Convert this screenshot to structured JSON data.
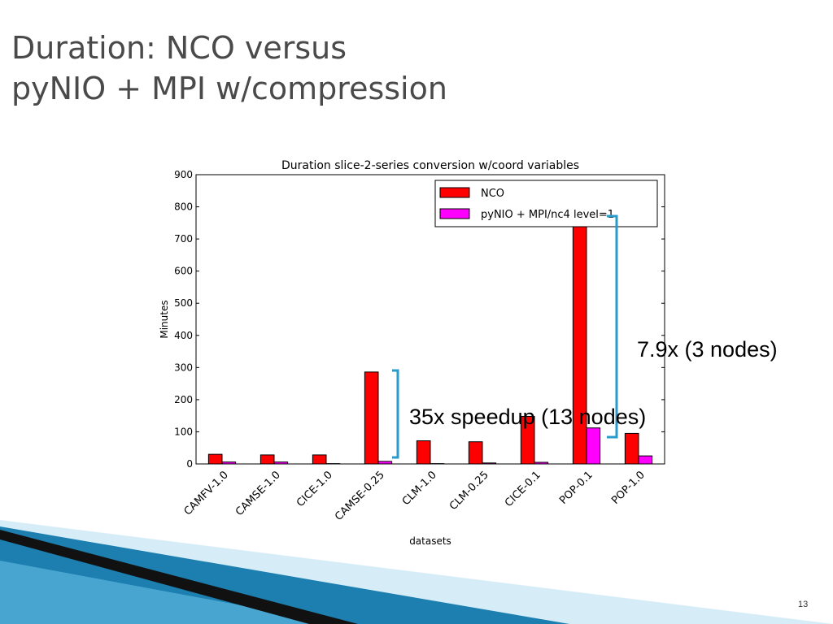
{
  "slide": {
    "title_line1": "Duration: NCO versus",
    "title_line2": "pyNIO + MPI w/compression",
    "callout_top": "7.9x (3 nodes)",
    "callout_bottom": "35x speedup (13 nodes)",
    "page_number": "13"
  },
  "colors": {
    "nco": "#ff0000",
    "pynio": "#ff00ff",
    "bracket": "#2a9bc9",
    "title": "#4a4a4a",
    "decor_dark": "#111111",
    "decor_blue": "#1c7fb0",
    "decor_light": "#bfe1f2"
  },
  "chart_data": {
    "type": "bar",
    "title": "Duration slice-2-series conversion w/coord variables",
    "xlabel": "datasets",
    "ylabel": "Minutes",
    "ylim": [
      0,
      900
    ],
    "yticks": [
      0,
      100,
      200,
      300,
      400,
      500,
      600,
      700,
      800,
      900
    ],
    "grid": false,
    "legend_position": "top-right",
    "categories": [
      "CAMFV-1.0",
      "CAMSE-1.0",
      "CICE-1.0",
      "CAMSE-0.25",
      "CLM-1.0",
      "CLM-0.25",
      "CICE-0.1",
      "POP-0.1",
      "POP-1.0"
    ],
    "series": [
      {
        "name": "NCO",
        "color": "#ff0000",
        "values": [
          30,
          28,
          28,
          286,
          72,
          69,
          148,
          880,
          95
        ]
      },
      {
        "name": "pyNIO + MPI/nc4 level=1",
        "color": "#ff00ff",
        "values": [
          6,
          6,
          1,
          8,
          1,
          3,
          5,
          112,
          25
        ]
      }
    ]
  }
}
